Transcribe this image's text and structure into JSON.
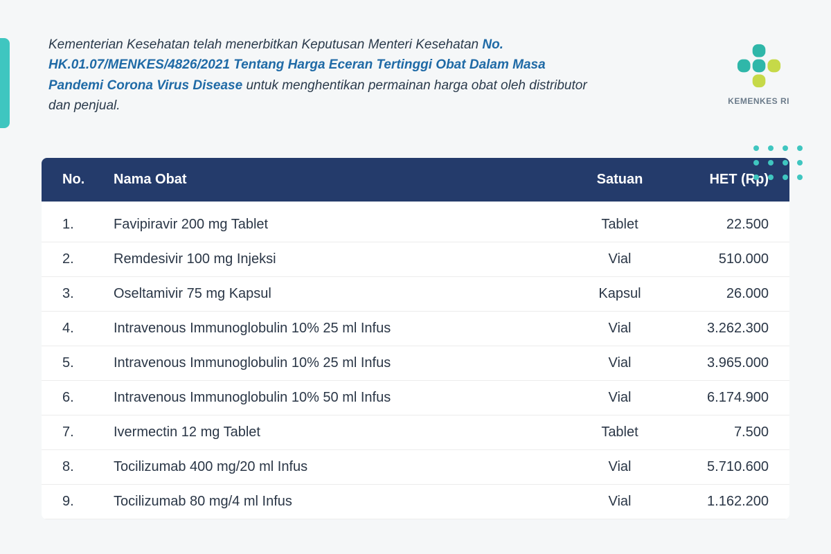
{
  "colors": {
    "accent_bar": "#3fc6c0",
    "header_bg": "#243b6b",
    "decree_text": "#1f6aa6",
    "body_text": "#2a3a4b",
    "page_bg": "#f5f7f8",
    "dot": "#3fc6c0",
    "logo_green": "#2fb7a9",
    "logo_yellow": "#c6d948",
    "row_border": "#ececec"
  },
  "intro": {
    "line1": "Kementerian Kesehatan telah menerbitkan Keputusan Menteri Kesehatan",
    "decree": "No. HK.01.07/MENKES/4826/2021 Tentang Harga Eceran Tertinggi Obat Dalam Masa Pandemi Corona Virus Disease",
    "line2": " untuk menghentikan permainan harga obat oleh distributor dan penjual."
  },
  "logo_label": "KEMENKES RI",
  "table": {
    "columns": {
      "no": "No.",
      "name": "Nama Obat",
      "unit": "Satuan",
      "price": "HET (Rp)"
    },
    "rows": [
      {
        "no": "1.",
        "name": "Favipiravir 200 mg Tablet",
        "unit": "Tablet",
        "price": "22.500"
      },
      {
        "no": "2.",
        "name": "Remdesivir 100 mg Injeksi",
        "unit": "Vial",
        "price": "510.000"
      },
      {
        "no": "3.",
        "name": "Oseltamivir 75 mg Kapsul",
        "unit": "Kapsul",
        "price": "26.000"
      },
      {
        "no": "4.",
        "name": "Intravenous Immunoglobulin 10% 25 ml Infus",
        "unit": "Vial",
        "price": "3.262.300"
      },
      {
        "no": "5.",
        "name": "Intravenous Immunoglobulin 10% 25 ml Infus",
        "unit": "Vial",
        "price": "3.965.000"
      },
      {
        "no": "6.",
        "name": "Intravenous Immunoglobulin 10% 50 ml Infus",
        "unit": "Vial",
        "price": "6.174.900"
      },
      {
        "no": "7.",
        "name": "Ivermectin 12 mg Tablet",
        "unit": "Tablet",
        "price": "7.500"
      },
      {
        "no": "8.",
        "name": "Tocilizumab 400 mg/20 ml Infus",
        "unit": "Vial",
        "price": "5.710.600"
      },
      {
        "no": "9.",
        "name": "Tocilizumab 80 mg/4 ml Infus",
        "unit": "Vial",
        "price": "1.162.200"
      }
    ]
  }
}
